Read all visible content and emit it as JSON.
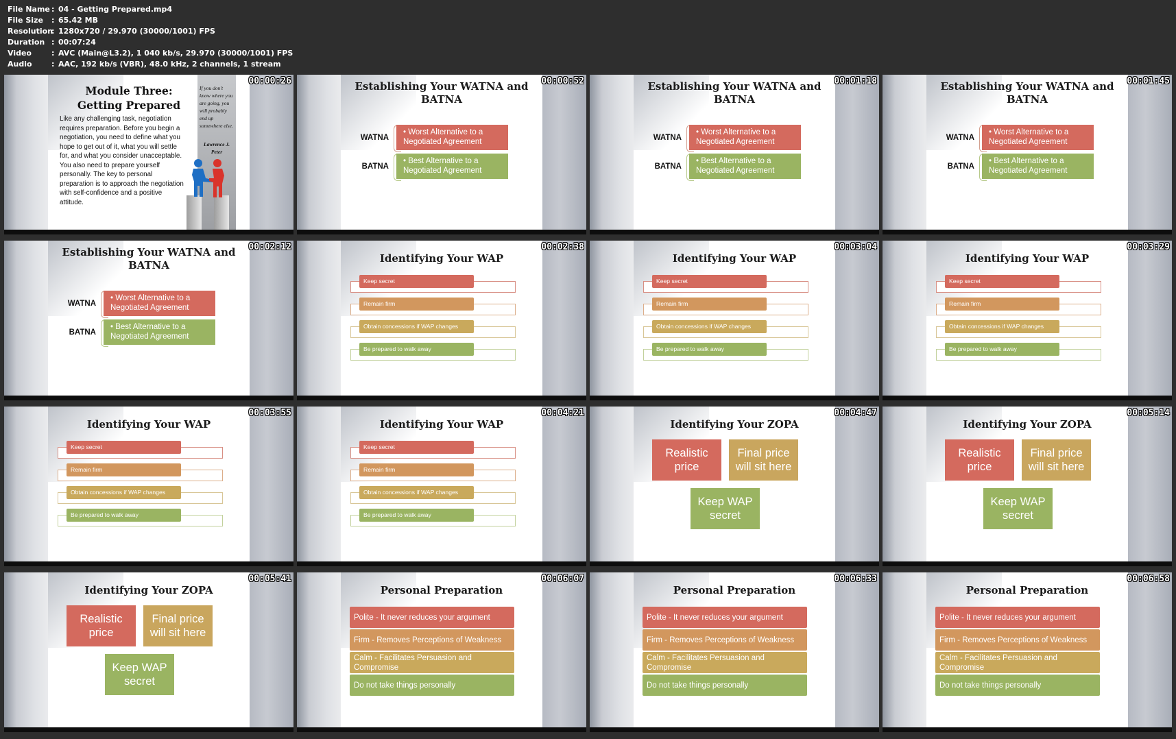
{
  "file_info": [
    {
      "key": "File Name",
      "value": "04 - Getting Prepared.mp4"
    },
    {
      "key": "File Size",
      "value": "65.42 MB"
    },
    {
      "key": "Resolution",
      "value": "1280x720 / 29.970 (30000/1001) FPS"
    },
    {
      "key": "Duration",
      "value": "00:07:24"
    },
    {
      "key": "Video",
      "value": "AVC (Main@L3.2), 1 040 kb/s, 29.970 (30000/1001) FPS"
    },
    {
      "key": "Audio",
      "value": "AAC, 192 kb/s (VBR), 48.0 kHz, 2 channels, 1 stream"
    }
  ],
  "colors": {
    "red": "#d46a5e",
    "orange": "#d2975e",
    "gold": "#c9a95c",
    "green": "#9ab462",
    "zopa_red": "#d46a5e",
    "zopa_gold": "#c9a65e",
    "zopa_green": "#9ab462"
  },
  "slides": {
    "module": {
      "title_line1": "Module Three:",
      "title_line2": "Getting Prepared",
      "body": "Like any challenging task, negotiation requires preparation. Before you begin a negotiation, you need to define what you hope to get out of it, what you will settle for, and what you consider unacceptable. You also need to prepare yourself personally. The key to personal preparation is to approach the negotiation with self-confidence and a positive attitude.",
      "quote": "If you don't know where you are going, you will probably end up somewhere else.",
      "author": "Lawrence J. Peter"
    },
    "watna": {
      "title": "Establishing Your WATNA and BATNA",
      "label_watna": "WATNA",
      "label_batna": "BATNA",
      "worst": "• Worst Alternative to a Negotiated Agreement",
      "best": "• Best Alternative to a Negotiated Agreement"
    },
    "wap": {
      "title": "Identifying Your WAP",
      "items": [
        "Keep secret",
        "Remain firm",
        "Obtain concessions if WAP changes",
        "Be prepared to walk away"
      ]
    },
    "zopa": {
      "title": "Identifying Your ZOPA",
      "realistic": "Realistic price",
      "final": "Final price will sit here",
      "keep": "Keep WAP secret"
    },
    "prep": {
      "title": "Personal Preparation",
      "items": [
        "Polite - It never reduces your argument",
        "Firm - Removes Perceptions of Weakness",
        "Calm - Facilitates Persuasion and Compromise",
        "Do not take things personally"
      ]
    }
  },
  "thumbnails": [
    {
      "timestamp": "00:00:26",
      "slide": "module"
    },
    {
      "timestamp": "00:00:52",
      "slide": "watna"
    },
    {
      "timestamp": "00:01:18",
      "slide": "watna"
    },
    {
      "timestamp": "00:01:45",
      "slide": "watna"
    },
    {
      "timestamp": "00:02:12",
      "slide": "watna"
    },
    {
      "timestamp": "00:02:38",
      "slide": "wap"
    },
    {
      "timestamp": "00:03:04",
      "slide": "wap"
    },
    {
      "timestamp": "00:03:29",
      "slide": "wap"
    },
    {
      "timestamp": "00:03:55",
      "slide": "wap"
    },
    {
      "timestamp": "00:04:21",
      "slide": "wap"
    },
    {
      "timestamp": "00:04:47",
      "slide": "zopa"
    },
    {
      "timestamp": "00:05:14",
      "slide": "zopa"
    },
    {
      "timestamp": "00:05:41",
      "slide": "zopa"
    },
    {
      "timestamp": "00:06:07",
      "slide": "prep"
    },
    {
      "timestamp": "00:06:33",
      "slide": "prep"
    },
    {
      "timestamp": "00:06:58",
      "slide": "prep"
    }
  ]
}
